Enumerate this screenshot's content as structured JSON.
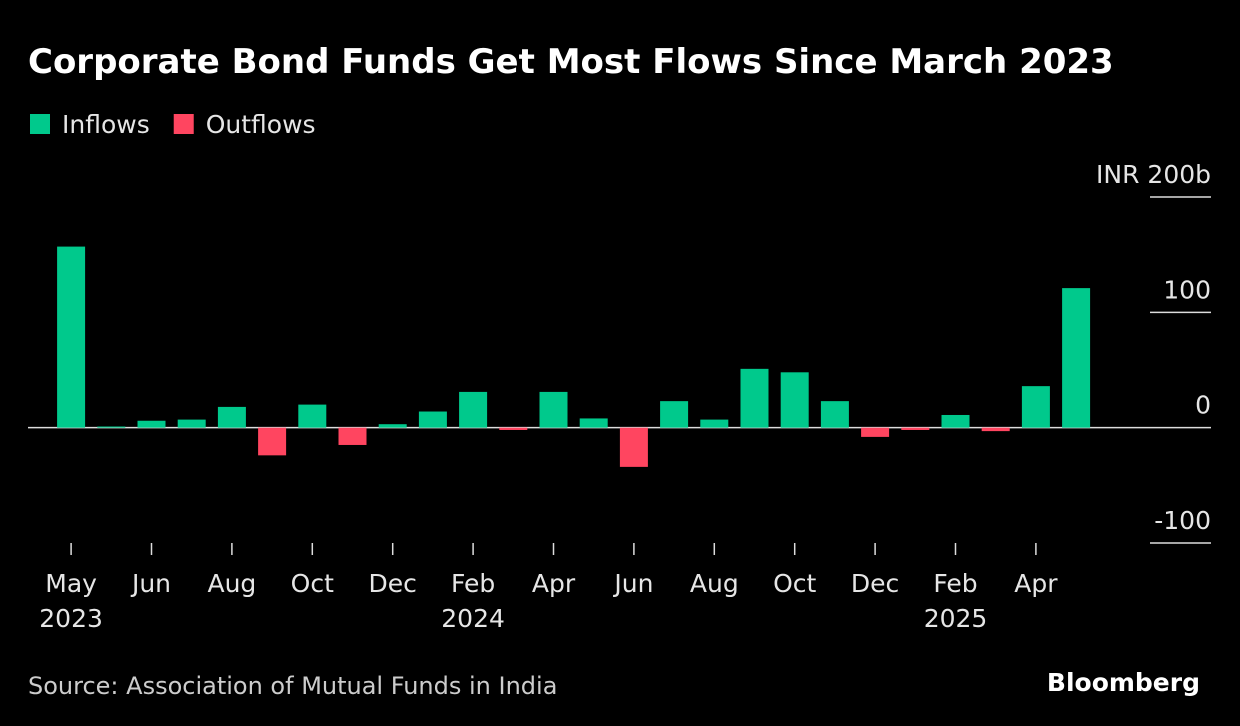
{
  "chart_data": {
    "type": "bar",
    "title": "Corporate Bond Funds Get Most Flows Since March 2023",
    "source": "Source: Association of Mutual Funds in India",
    "brand": "Bloomberg",
    "categories": [
      "May 2023",
      null,
      "Jun",
      null,
      "Aug",
      null,
      "Oct",
      null,
      "Dec",
      null,
      "Feb 2024",
      null,
      "Apr",
      null,
      "Jun",
      null,
      "Aug",
      null,
      "Oct",
      null,
      "Dec",
      null,
      "Feb 2025",
      null,
      "Apr",
      null
    ],
    "series": [
      {
        "name": "Inflows",
        "color": "#00c98c",
        "values": [
          157,
          1,
          6,
          7,
          18,
          null,
          20,
          null,
          3,
          14,
          31,
          null,
          31,
          8,
          null,
          23,
          7,
          51,
          48,
          23,
          null,
          null,
          11,
          null,
          36,
          121
        ]
      },
      {
        "name": "Outflows",
        "color": "#ff4560",
        "values": [
          null,
          null,
          null,
          null,
          null,
          -24,
          null,
          -15,
          null,
          null,
          null,
          -2,
          null,
          null,
          -34,
          null,
          null,
          null,
          null,
          null,
          -8,
          -2,
          null,
          -3,
          null,
          null
        ]
      }
    ],
    "ylim": [
      -100,
      200
    ],
    "yticks": [
      {
        "value": 200,
        "label": "INR 200b"
      },
      100,
      0,
      -100
    ]
  }
}
